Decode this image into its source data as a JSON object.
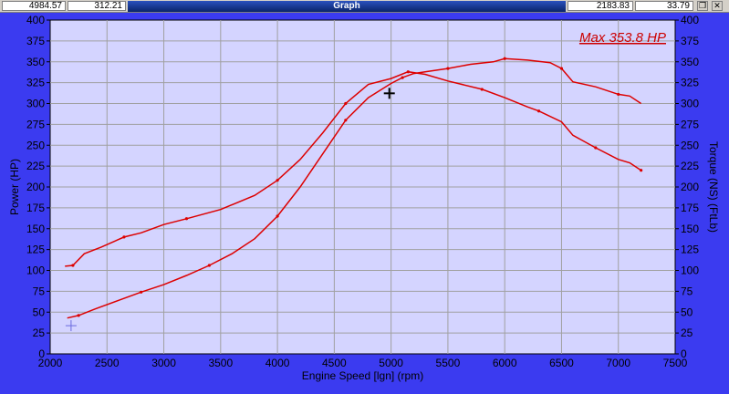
{
  "toolbar": {
    "readout_left_1": "4984.57",
    "readout_left_2": "312.21",
    "title": "Graph",
    "readout_right_1": "2183.83",
    "readout_right_2": "33.79",
    "restore_glyph": "❐",
    "close_glyph": "✕"
  },
  "colors": {
    "background": "#3b3bf0",
    "plot_area": "#d4d4ff",
    "curve": "#dd0000",
    "grid": "#a0a0a0",
    "max_label": "#cc0000"
  },
  "chart_data": {
    "type": "line",
    "title": "",
    "annotation": "Max 353.8 HP",
    "xlabel": "Engine Speed [lgn] (rpm)",
    "ylabel_left": "Power (HP)",
    "ylabel_right": "Torque (NS) (FtLb)",
    "xlim": [
      2000,
      7500
    ],
    "ylim": [
      0,
      400
    ],
    "x_ticks": [
      "2000",
      "2500",
      "3000",
      "3500",
      "4000",
      "4500",
      "5000",
      "5500",
      "6000",
      "6500",
      "7000",
      "7500"
    ],
    "y_ticks": [
      "0",
      "25",
      "50",
      "75",
      "100",
      "125",
      "150",
      "175",
      "200",
      "225",
      "250",
      "275",
      "300",
      "325",
      "350",
      "375",
      "400"
    ],
    "grid": true,
    "series": [
      {
        "name": "",
        "x": [
          2150,
          2250,
          2400,
          2600,
          2800,
          3000,
          3200,
          3400,
          3600,
          3800,
          4000,
          4200,
          4400,
          4600,
          4800,
          5000,
          5100,
          5200,
          5300,
          5500,
          5700,
          5900,
          6000,
          6200,
          6400,
          6500,
          6600,
          6800,
          7000,
          7100,
          7200
        ],
        "y": [
          43,
          46,
          54,
          64,
          74,
          83,
          94,
          106,
          120,
          138,
          165,
          200,
          240,
          280,
          307,
          324,
          331,
          336,
          338,
          342,
          347,
          350,
          353.8,
          352,
          349,
          342,
          326,
          320,
          311,
          309,
          300
        ]
      },
      {
        "name": "",
        "x": [
          2130,
          2200,
          2300,
          2450,
          2650,
          2800,
          3000,
          3200,
          3500,
          3800,
          4000,
          4200,
          4400,
          4600,
          4800,
          5000,
          5150,
          5300,
          5500,
          5800,
          6000,
          6200,
          6300,
          6500,
          6600,
          6800,
          7000,
          7100,
          7200
        ],
        "y": [
          105,
          106,
          120,
          128,
          140,
          145,
          155,
          162,
          173,
          190,
          208,
          233,
          265,
          300,
          323,
          330,
          338,
          335,
          327,
          317,
          307,
          296,
          291,
          278,
          262,
          247,
          233,
          229,
          220
        ]
      }
    ],
    "cursor_markers": [
      {
        "x": 4984.57,
        "y": 312.21
      },
      {
        "x": 2183.83,
        "y": 33.79
      }
    ]
  }
}
